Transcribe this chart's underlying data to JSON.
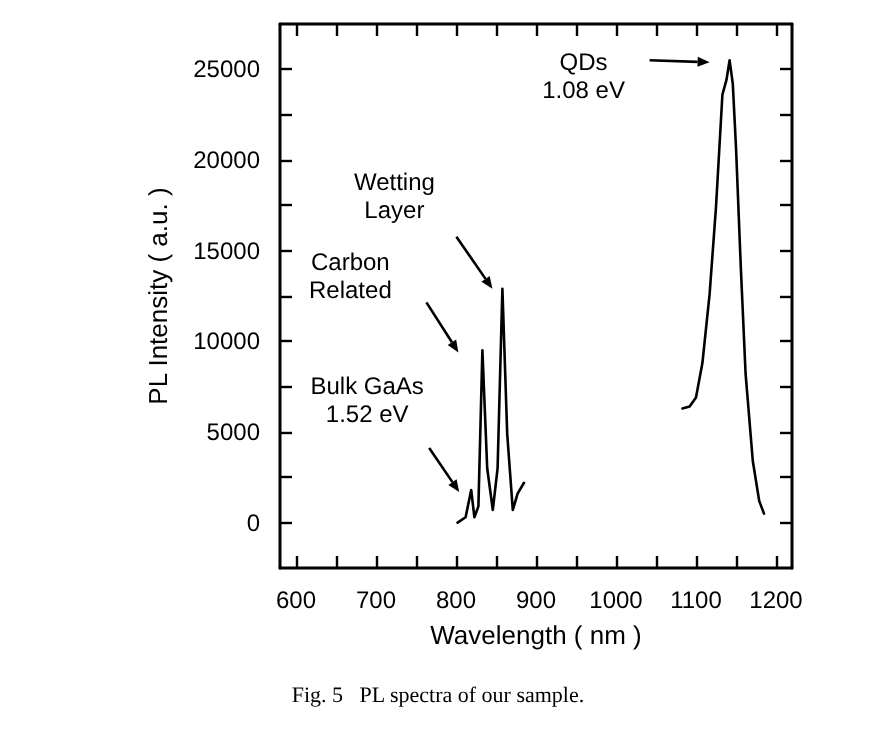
{
  "chart_data": {
    "type": "line",
    "xlabel": "Wavelength ( nm )",
    "ylabel": "PL Intensity ( a.u. )",
    "xlim": [
      580,
      1220
    ],
    "ylim": [
      -2500,
      27500
    ],
    "xticks": [
      600,
      {
        "value": 650,
        "label": null
      },
      700,
      {
        "value": 750,
        "label": null
      },
      800,
      {
        "value": 850,
        "label": null
      },
      900,
      {
        "value": 950,
        "label": null
      },
      1000,
      {
        "value": 1050,
        "label": null
      },
      1100,
      {
        "value": 1150,
        "label": null
      },
      1200
    ],
    "yticks": [
      0,
      {
        "value": 2500,
        "label": null
      },
      5000,
      {
        "value": 7500,
        "label": null
      },
      10000,
      {
        "value": 12500,
        "label": null
      },
      15000,
      {
        "value": 17500,
        "label": null
      },
      20000,
      {
        "value": 22500,
        "label": null
      },
      25000
    ],
    "grid": false,
    "marker": "none",
    "line_style": "solid",
    "series": [
      {
        "color": "#000000",
        "x": [
          802,
          812,
          819,
          823,
          828,
          833,
          839,
          846,
          852,
          858,
          864,
          871,
          877,
          885
        ],
        "values": [
          0,
          300,
          1800,
          300,
          900,
          9500,
          3000,
          700,
          3000,
          12900,
          4900,
          700,
          1600,
          2200
        ]
      },
      {
        "color": "#000000",
        "x": [
          1083,
          1092,
          1100,
          1108,
          1117,
          1125,
          1133,
          1138,
          1142,
          1146,
          1150,
          1156,
          1162,
          1171,
          1179,
          1185
        ],
        "values": [
          6300,
          6400,
          6900,
          8800,
          12600,
          17400,
          23600,
          24400,
          25500,
          24200,
          20700,
          14100,
          8200,
          3400,
          1200,
          500
        ]
      }
    ],
    "annotations": [
      "QDs\n1.08 eV",
      "Wetting\nLayer",
      "Carbon\nRelated",
      "Bulk GaAs\n1.52 eV",
      "Fig. 5   PL spectra of our sample."
    ]
  }
}
